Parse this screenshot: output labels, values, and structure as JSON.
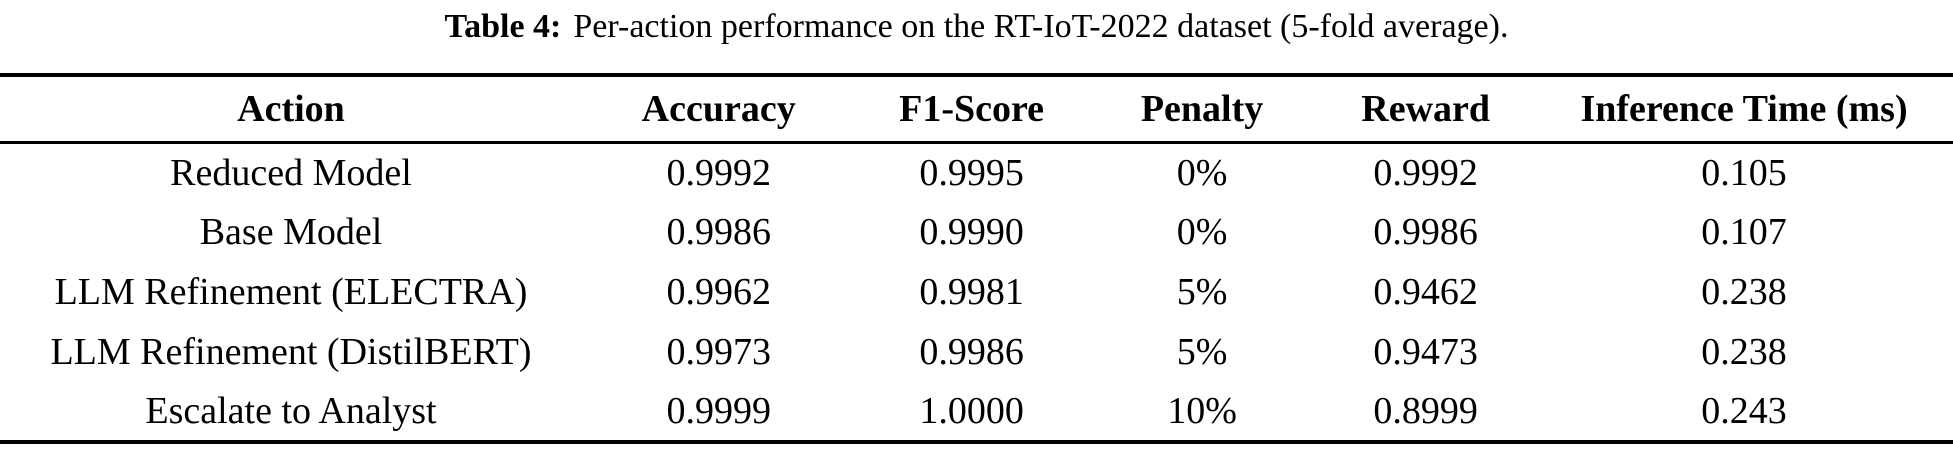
{
  "caption": {
    "label": "Table 4:",
    "text": "Per-action performance on the RT-IoT-2022 dataset (5-fold average)."
  },
  "table": {
    "columns": [
      "Action",
      "Accuracy",
      "F1-Score",
      "Penalty",
      "Reward",
      "Inference Time (ms)"
    ],
    "rows": [
      [
        "Reduced Model",
        "0.9992",
        "0.9995",
        "0%",
        "0.9992",
        "0.105"
      ],
      [
        "Base Model",
        "0.9986",
        "0.9990",
        "0%",
        "0.9986",
        "0.107"
      ],
      [
        "LLM Refinement (ELECTRA)",
        "0.9962",
        "0.9981",
        "5%",
        "0.9462",
        "0.238"
      ],
      [
        "LLM Refinement (DistilBERT)",
        "0.9973",
        "0.9986",
        "5%",
        "0.9473",
        "0.238"
      ],
      [
        "Escalate to Analyst",
        "0.9999",
        "1.0000",
        "10%",
        "0.8999",
        "0.243"
      ]
    ]
  },
  "colors": {
    "text": "#000000",
    "background": "#ffffff",
    "rule": "#000000"
  }
}
